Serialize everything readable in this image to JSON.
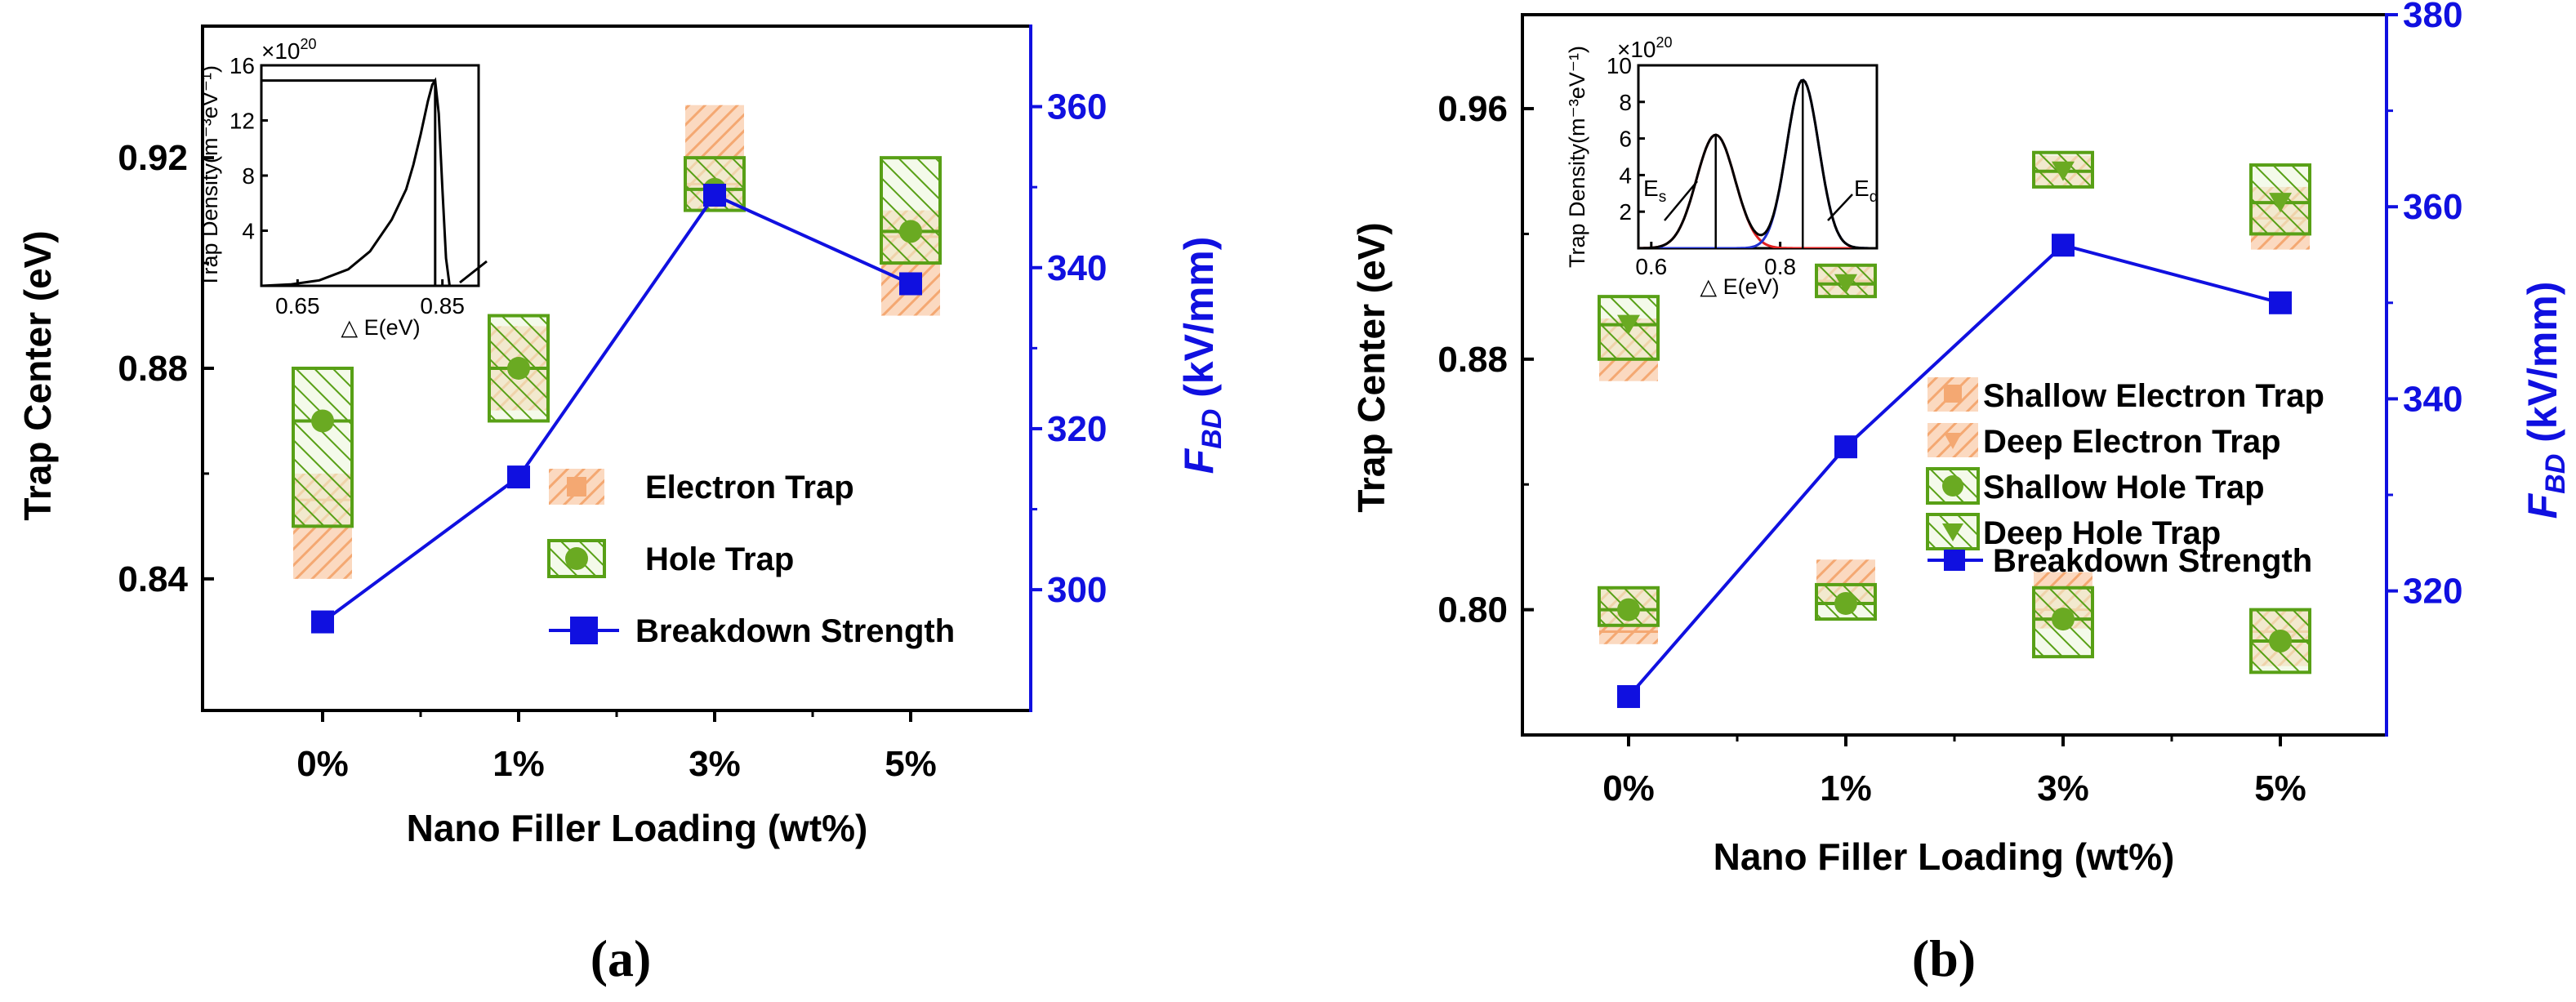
{
  "colors": {
    "electron": "#f4a872",
    "hole_fill": "#c8e6a0",
    "hole_stroke": "#58a016",
    "hole_marker": "#6aaa22",
    "breakdown": "#1010e0",
    "axis": "#000000"
  },
  "chart_data": [
    {
      "type": "box",
      "panel_label": "(a)",
      "xlabel": "Nano Filler Loading (wt%)",
      "ylabel": "Trap Center (eV)",
      "y2label_main": "F",
      "y2label_sub": "BD",
      "y2label_unit": " (kV/mm)",
      "categories": [
        "0%",
        "1%",
        "3%",
        "5%"
      ],
      "ylim": [
        0.815,
        0.945
      ],
      "yticks": [
        0.84,
        0.88,
        0.92
      ],
      "ytick_labels": [
        "0.84",
        "0.88",
        "0.92"
      ],
      "y2lim": [
        285,
        370
      ],
      "y2ticks": [
        300,
        320,
        340,
        360
      ],
      "y2tick_labels": [
        "300",
        "320",
        "340",
        "360"
      ],
      "series": [
        {
          "name": "Electron Trap",
          "kind": "box",
          "boxes": [
            [
              0.84,
              0.86,
              0.855
            ],
            [
              0.872,
              0.888,
              0.88
            ],
            [
              0.91,
              0.93,
              0.915
            ],
            [
              0.89,
              0.91,
              0.905
            ]
          ]
        },
        {
          "name": "Hole Trap",
          "kind": "box",
          "boxes": [
            [
              0.85,
              0.88,
              0.87
            ],
            [
              0.87,
              0.89,
              0.88
            ],
            [
              0.91,
              0.92,
              0.914
            ],
            [
              0.9,
              0.92,
              0.906
            ]
          ]
        },
        {
          "name": "Breakdown Strength",
          "kind": "line",
          "axis": "y2",
          "values": [
            296,
            314,
            349,
            338
          ]
        }
      ],
      "legend": [
        "Electron Trap",
        "Hole Trap",
        "Breakdown Strength"
      ],
      "inset": {
        "ylabel": "Trap Density(m⁻³eV⁻¹)",
        "yscale": "×10",
        "yscale_exp": "20",
        "xlabel": "△ E(eV)",
        "xlim": [
          0.6,
          0.9
        ],
        "ylim": [
          0,
          16
        ],
        "xticks": [
          0.65,
          0.85
        ],
        "xtick_labels": [
          "0.65",
          "0.85"
        ],
        "yticks": [
          4,
          8,
          12,
          16
        ],
        "ytick_labels": [
          "4",
          "8",
          "12",
          "16"
        ],
        "curve_x": [
          0.6,
          0.64,
          0.68,
          0.72,
          0.75,
          0.78,
          0.8,
          0.81,
          0.82,
          0.83,
          0.836,
          0.84,
          0.845,
          0.85,
          0.855,
          0.86
        ],
        "curve_y": [
          0.0,
          0.1,
          0.4,
          1.2,
          2.5,
          4.8,
          7.0,
          8.8,
          11.0,
          13.4,
          14.6,
          14.9,
          12.5,
          7.0,
          2.0,
          0.0
        ],
        "peak_x": 0.84,
        "peak_y": 14.9
      }
    },
    {
      "type": "box",
      "panel_label": "(b)",
      "xlabel": "Nano Filler Loading (wt%)",
      "ylabel": "Trap Center (eV)",
      "y2label_main": "F",
      "y2label_sub": "BD",
      "y2label_unit": " (kV/mm)",
      "categories": [
        "0%",
        "1%",
        "3%",
        "5%"
      ],
      "ylim": [
        0.76,
        0.99
      ],
      "yticks": [
        0.8,
        0.88,
        0.96
      ],
      "ytick_labels": [
        "0.80",
        "0.88",
        "0.96"
      ],
      "y2lim": [
        305,
        380
      ],
      "y2ticks": [
        320,
        340,
        360,
        380
      ],
      "y2tick_labels": [
        "320",
        "340",
        "360",
        "380"
      ],
      "series": [
        {
          "name": "Shallow Electron Trap",
          "kind": "box",
          "boxes": [
            [
              0.789,
              0.807,
              0.793
            ],
            [
              0.802,
              0.816,
              0.808
            ],
            [
              0.794,
              0.812,
              0.8
            ],
            [
              0.782,
              0.8,
              0.793
            ]
          ]
        },
        {
          "name": "Deep Electron Trap",
          "kind": "box",
          "boxes": [
            [
              0.873,
              0.893,
              0.88
            ],
            [
              0.9,
              0.91,
              0.905
            ],
            [
              0.935,
              0.945,
              0.94
            ],
            [
              0.915,
              0.935,
              0.925
            ]
          ]
        },
        {
          "name": "Shallow Hole Trap",
          "kind": "box",
          "boxes": [
            [
              0.795,
              0.807,
              0.8
            ],
            [
              0.797,
              0.808,
              0.802
            ],
            [
              0.785,
              0.807,
              0.797
            ],
            [
              0.78,
              0.8,
              0.79
            ]
          ]
        },
        {
          "name": "Deep Hole Trap",
          "kind": "box",
          "boxes": [
            [
              0.88,
              0.9,
              0.891
            ],
            [
              0.9,
              0.91,
              0.904
            ],
            [
              0.935,
              0.946,
              0.94
            ],
            [
              0.92,
              0.942,
              0.93
            ]
          ]
        },
        {
          "name": "Breakdown Strength",
          "kind": "line",
          "axis": "y2",
          "values": [
            309,
            335,
            356,
            350
          ]
        }
      ],
      "legend": [
        "Shallow Electron Trap",
        "Deep Electron Trap",
        "Shallow Hole Trap",
        "Deep Hole Trap",
        "Breakdown Strength"
      ],
      "inset": {
        "ylabel": "Trap Density(m⁻³eV⁻¹)",
        "yscale": "×10",
        "yscale_exp": "20",
        "xlabel": "△ E(eV)",
        "xlim": [
          0.58,
          0.95
        ],
        "ylim": [
          0,
          10
        ],
        "xticks": [
          0.6,
          0.8
        ],
        "xtick_labels": [
          "0.6",
          "0.8"
        ],
        "yticks": [
          2,
          4,
          6,
          8,
          10
        ],
        "ytick_labels": [
          "2",
          "4",
          "6",
          "8",
          "10"
        ],
        "shallow_center": 0.7,
        "shallow_sigma": 0.03,
        "shallow_peak": 6.2,
        "deep_center": 0.835,
        "deep_sigma": 0.025,
        "deep_peak": 9.2,
        "es_label": "E",
        "es_sub": "s",
        "ed_label": "E",
        "ed_sub": "d"
      }
    }
  ]
}
